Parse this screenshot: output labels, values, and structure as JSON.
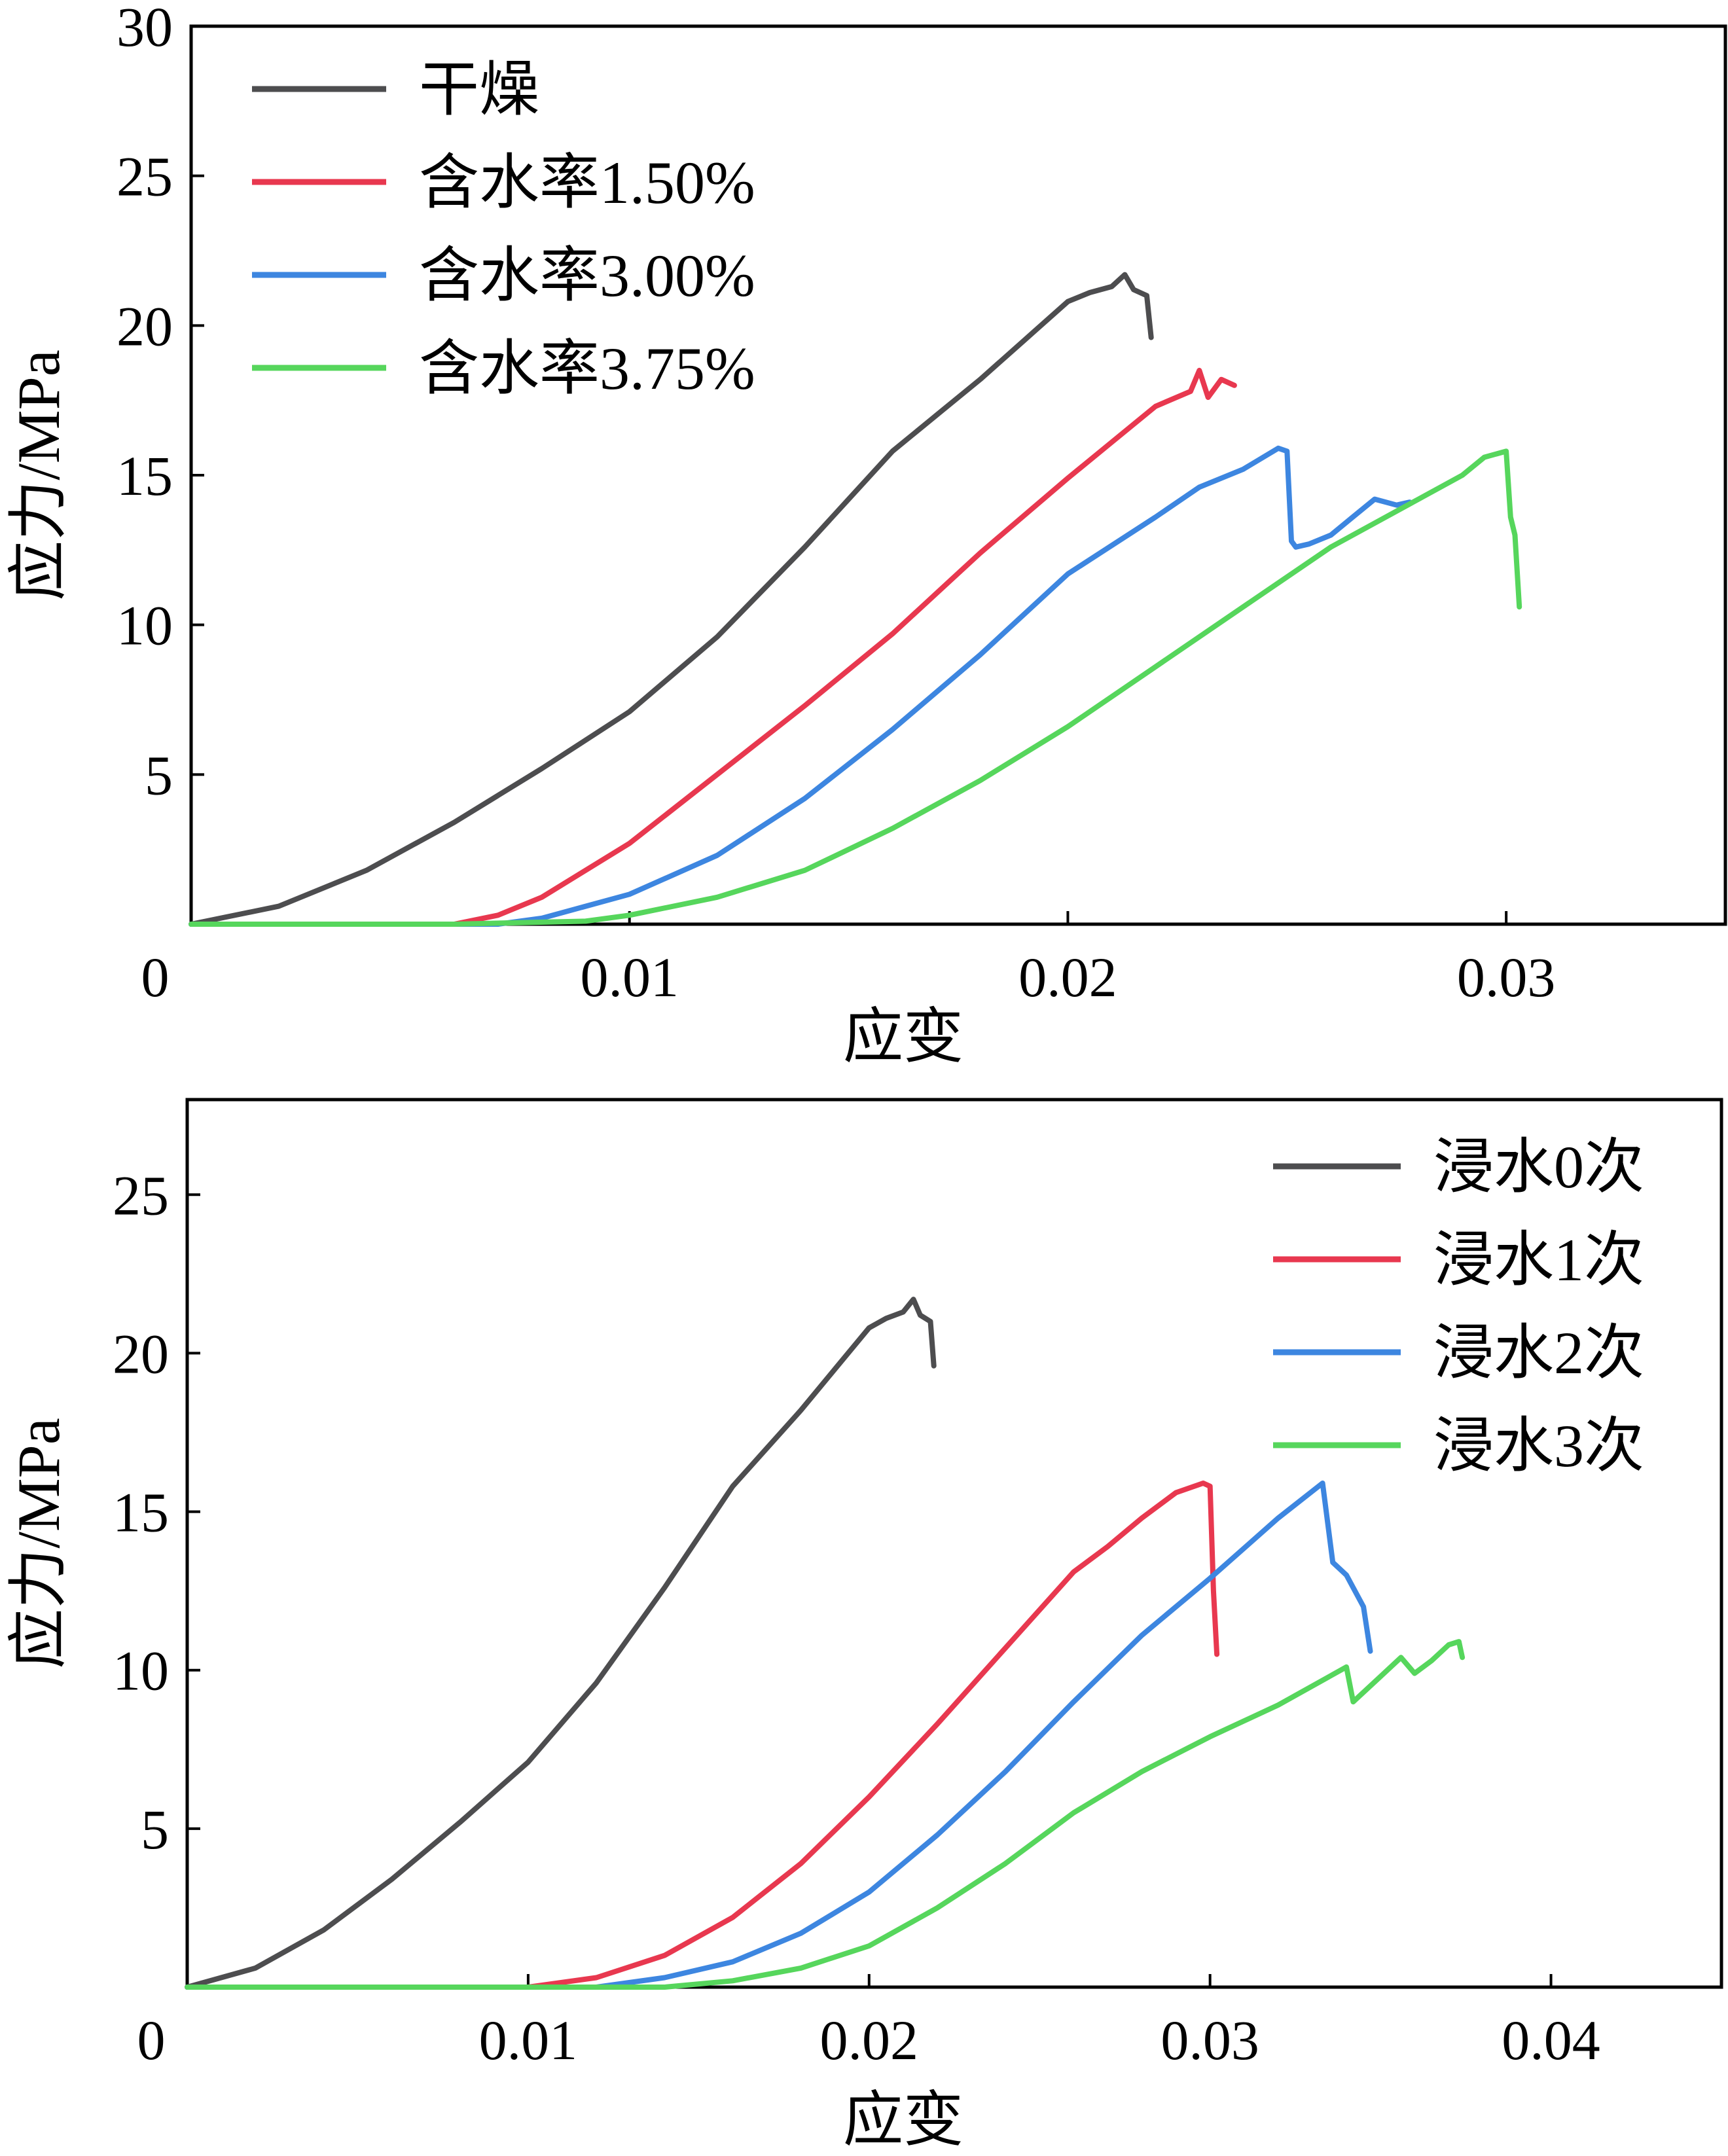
{
  "chart_data": [
    {
      "type": "line",
      "xlabel": "应变",
      "ylabel": "应力/MPa",
      "xlim": [
        0,
        0.035
      ],
      "ylim": [
        0,
        30
      ],
      "x_ticks": [
        0,
        0.01,
        0.02,
        0.03
      ],
      "x_tick_labels": [
        "0",
        "0.01",
        "0.02",
        "0.03"
      ],
      "y_ticks": [
        5,
        10,
        15,
        20,
        25,
        30
      ],
      "y_tick_labels": [
        "5",
        "10",
        "15",
        "20",
        "25",
        "30"
      ],
      "legend_position": "top-left",
      "grid": false,
      "series": [
        {
          "name": "干燥",
          "color": "#4d4d4f",
          "x": [
            0,
            0.002,
            0.004,
            0.006,
            0.008,
            0.01,
            0.012,
            0.014,
            0.016,
            0.017,
            0.018,
            0.019,
            0.02,
            0.0205,
            0.021,
            0.0213,
            0.0215,
            0.0218,
            0.0219
          ],
          "y": [
            0,
            0.6,
            1.8,
            3.4,
            5.2,
            7.1,
            9.6,
            12.6,
            15.8,
            17.0,
            18.2,
            19.5,
            20.8,
            21.1,
            21.3,
            21.7,
            21.2,
            21.0,
            19.6
          ]
        },
        {
          "name": "含水率1.50%",
          "color": "#e8384f",
          "x": [
            0,
            0.004,
            0.006,
            0.007,
            0.008,
            0.01,
            0.012,
            0.014,
            0.016,
            0.018,
            0.02,
            0.021,
            0.022,
            0.0228,
            0.023,
            0.0232,
            0.0235,
            0.0238
          ],
          "y": [
            0,
            0,
            0,
            0.3,
            0.9,
            2.7,
            5.0,
            7.3,
            9.7,
            12.4,
            14.9,
            16.1,
            17.3,
            17.8,
            18.5,
            17.6,
            18.2,
            18.0
          ]
        },
        {
          "name": "含水率3.00%",
          "color": "#3d86e0",
          "x": [
            0,
            0.004,
            0.007,
            0.008,
            0.01,
            0.012,
            0.014,
            0.016,
            0.018,
            0.02,
            0.022,
            0.023,
            0.024,
            0.0248,
            0.025,
            0.0251,
            0.0252,
            0.0255,
            0.026,
            0.0265,
            0.027,
            0.0275,
            0.0278
          ],
          "y": [
            0,
            0,
            0,
            0.2,
            1.0,
            2.3,
            4.2,
            6.5,
            9.0,
            11.7,
            13.6,
            14.6,
            15.2,
            15.9,
            15.8,
            12.8,
            12.6,
            12.7,
            13.0,
            13.6,
            14.2,
            14.0,
            14.1
          ]
        },
        {
          "name": "含水率3.75%",
          "color": "#56d65c",
          "x": [
            0,
            0.006,
            0.009,
            0.01,
            0.012,
            0.014,
            0.016,
            0.018,
            0.02,
            0.022,
            0.024,
            0.026,
            0.028,
            0.029,
            0.0295,
            0.03,
            0.0301,
            0.0302,
            0.0303
          ],
          "y": [
            0,
            0,
            0.1,
            0.3,
            0.9,
            1.8,
            3.2,
            4.8,
            6.6,
            8.6,
            10.6,
            12.6,
            14.2,
            15.0,
            15.6,
            15.8,
            13.6,
            13.0,
            10.6
          ]
        }
      ]
    },
    {
      "type": "line",
      "xlabel": "应变",
      "ylabel": "应力/MPa",
      "xlim": [
        0,
        0.045
      ],
      "ylim": [
        0,
        28
      ],
      "x_ticks": [
        0,
        0.01,
        0.02,
        0.03,
        0.04
      ],
      "x_tick_labels": [
        "0",
        "0.01",
        "0.02",
        "0.03",
        "0.04"
      ],
      "y_ticks": [
        5,
        10,
        15,
        20,
        25
      ],
      "y_tick_labels": [
        "5",
        "10",
        "15",
        "20",
        "25"
      ],
      "legend_position": "top-right",
      "grid": false,
      "series": [
        {
          "name": "浸水0次",
          "color": "#4d4d4f",
          "x": [
            0,
            0.002,
            0.004,
            0.006,
            0.008,
            0.01,
            0.012,
            0.014,
            0.016,
            0.017,
            0.018,
            0.019,
            0.02,
            0.0205,
            0.021,
            0.0213,
            0.0215,
            0.0218,
            0.0219
          ],
          "y": [
            0,
            0.6,
            1.8,
            3.4,
            5.2,
            7.1,
            9.6,
            12.6,
            15.8,
            17.0,
            18.2,
            19.5,
            20.8,
            21.1,
            21.3,
            21.7,
            21.2,
            21.0,
            19.6
          ]
        },
        {
          "name": "浸水1次",
          "color": "#e8384f",
          "x": [
            0,
            0.01,
            0.012,
            0.014,
            0.016,
            0.018,
            0.02,
            0.022,
            0.024,
            0.026,
            0.027,
            0.028,
            0.029,
            0.0298,
            0.03,
            0.0301,
            0.0302
          ],
          "y": [
            0,
            0,
            0.3,
            1.0,
            2.2,
            3.9,
            6.0,
            8.3,
            10.7,
            13.1,
            13.9,
            14.8,
            15.6,
            15.9,
            15.8,
            12.5,
            10.5
          ]
        },
        {
          "name": "浸水2次",
          "color": "#3d86e0",
          "x": [
            0,
            0.012,
            0.014,
            0.016,
            0.018,
            0.02,
            0.022,
            0.024,
            0.026,
            0.028,
            0.03,
            0.032,
            0.0333,
            0.0336,
            0.034,
            0.0345,
            0.0347
          ],
          "y": [
            0,
            0,
            0.3,
            0.8,
            1.7,
            3.0,
            4.8,
            6.8,
            9.0,
            11.1,
            12.9,
            14.8,
            15.9,
            13.4,
            13.0,
            12.0,
            10.6
          ]
        },
        {
          "name": "浸水3次",
          "color": "#56d65c",
          "x": [
            0,
            0.014,
            0.016,
            0.018,
            0.02,
            0.022,
            0.024,
            0.026,
            0.028,
            0.03,
            0.032,
            0.034,
            0.0342,
            0.035,
            0.0356,
            0.036,
            0.0365,
            0.037,
            0.0373,
            0.0374
          ],
          "y": [
            0,
            0,
            0.2,
            0.6,
            1.3,
            2.5,
            3.9,
            5.5,
            6.8,
            7.9,
            8.9,
            10.1,
            9.0,
            9.8,
            10.4,
            9.9,
            10.3,
            10.8,
            10.9,
            10.4
          ]
        }
      ]
    }
  ]
}
